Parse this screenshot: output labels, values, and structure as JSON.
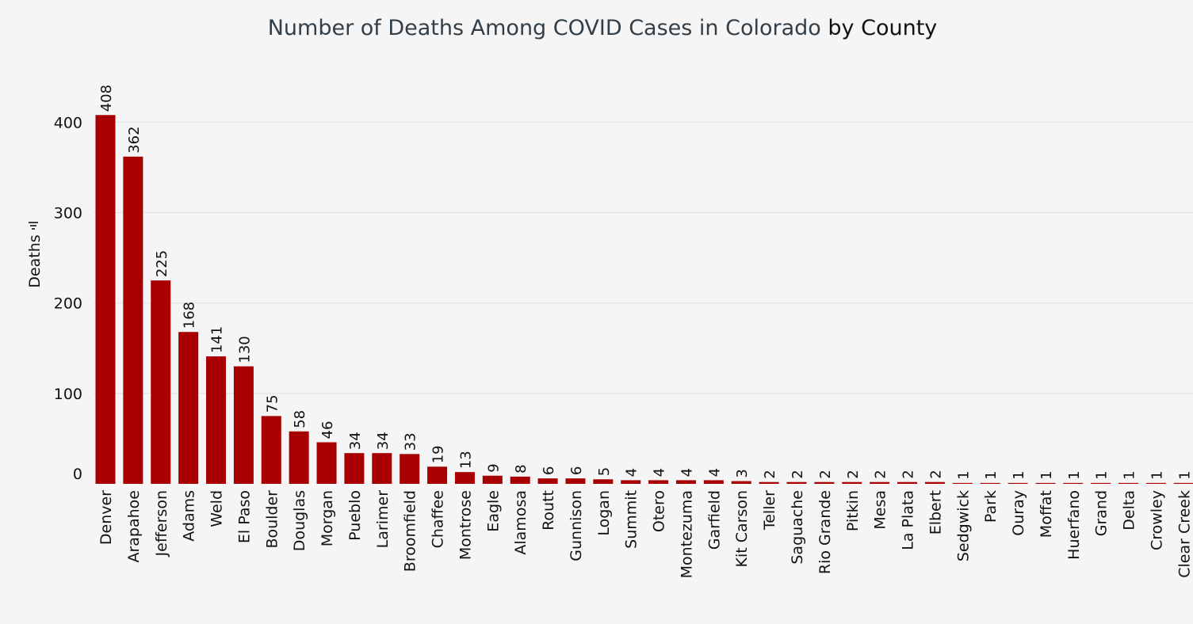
{
  "chart_data": {
    "type": "bar",
    "title": "Number of Deaths Among COVID Cases in Colorado",
    "title_suffix": "by County",
    "xlabel": "",
    "ylabel": "Deaths",
    "ylim": [
      0,
      420
    ],
    "yticks": [
      0,
      100,
      200,
      300,
      400
    ],
    "grid": true,
    "bar_color": "#a80000",
    "categories": [
      "Denver",
      "Arapahoe",
      "Jefferson",
      "Adams",
      "Weld",
      "El Paso",
      "Boulder",
      "Douglas",
      "Morgan",
      "Pueblo",
      "Larimer",
      "Broomfield",
      "Chaffee",
      "Montrose",
      "Eagle",
      "Alamosa",
      "Routt",
      "Gunnison",
      "Logan",
      "Summit",
      "Otero",
      "Montezuma",
      "Garfield",
      "Kit Carson",
      "Teller",
      "Saguache",
      "Rio Grande",
      "Pitkin",
      "Mesa",
      "La Plata",
      "Elbert",
      "Sedgwick",
      "Park",
      "Ouray",
      "Moffat",
      "Huerfano",
      "Grand",
      "Delta",
      "Crowley",
      "Clear Creek"
    ],
    "values": [
      408,
      362,
      225,
      168,
      141,
      130,
      75,
      58,
      46,
      34,
      34,
      33,
      19,
      13,
      9,
      8,
      6,
      6,
      5,
      4,
      4,
      4,
      4,
      3,
      2,
      2,
      2,
      2,
      2,
      2,
      2,
      1,
      1,
      1,
      1,
      1,
      1,
      1,
      1,
      1
    ]
  }
}
